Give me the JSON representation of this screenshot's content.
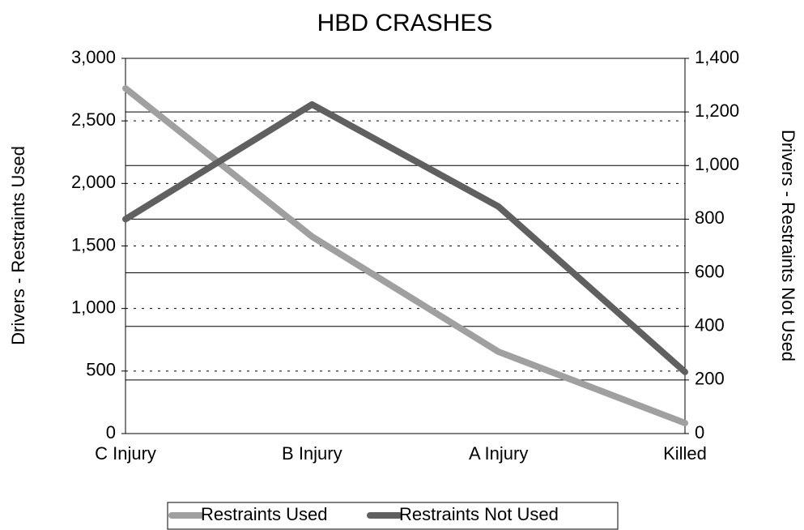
{
  "chart_data": {
    "type": "line",
    "title": "HBD CRASHES",
    "y_label": "Drivers - Restraints Used",
    "y2_label": "Drivers - Restraints Not Used",
    "categories": [
      "C Injury",
      "B Injury",
      "A Injury",
      "Killed"
    ],
    "series": [
      {
        "name": "Restraints Used",
        "color": "#a0a0a0",
        "values": [
          2760,
          1575,
          654,
          84
        ]
      },
      {
        "name": "Restraints Not Used",
        "color": "#606060",
        "axis": "y2",
        "values": [
          800,
          1228,
          847,
          230
        ]
      }
    ],
    "ylim": [
      0,
      3000
    ],
    "yticks": [
      0,
      500,
      {
        "value": 1000,
        "label": "1,000"
      },
      {
        "value": 1500,
        "label": "1,500"
      },
      {
        "value": 2000,
        "label": "2,000"
      },
      {
        "value": 2500,
        "label": "2,500"
      },
      {
        "value": 3000,
        "label": "3,000"
      }
    ],
    "y2lim": [
      0,
      1400
    ],
    "y2ticks": [
      0,
      200,
      400,
      600,
      800,
      {
        "value": 1000,
        "label": "1,000"
      },
      {
        "value": 1200,
        "label": "1,200"
      },
      {
        "value": 1400,
        "label": "1,400"
      }
    ],
    "grid": "dotted",
    "y2grid": "solid",
    "legend": "bottom"
  }
}
